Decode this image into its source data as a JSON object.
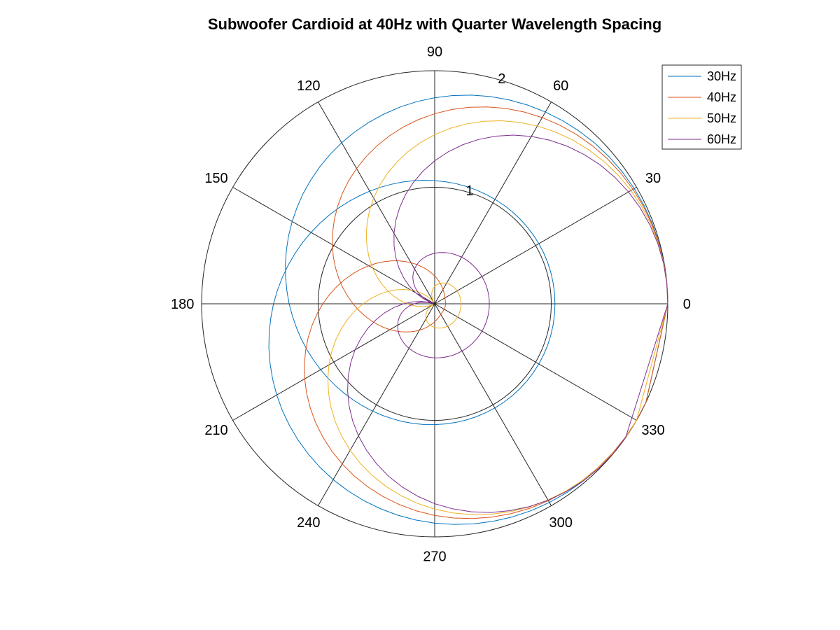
{
  "chart_data": {
    "type": "polar-line",
    "title": "Subwoofer Cardioid at 40Hz with Quarter Wavelength Spacing",
    "theta_unit": "degrees",
    "theta_ticks": [
      "0",
      "30",
      "60",
      "90",
      "120",
      "150",
      "180",
      "210",
      "240",
      "270",
      "300",
      "330"
    ],
    "theta_tick_values": [
      0,
      30,
      60,
      90,
      120,
      150,
      180,
      210,
      240,
      270,
      300,
      330
    ],
    "r_ticks": [
      "1",
      "2"
    ],
    "r_tick_values": [
      1,
      2
    ],
    "rlim": [
      0,
      2
    ],
    "grid": true,
    "legend_position": "top-right",
    "formula": "r = |1 + exp(i*(pi/2)*(f/40)*(1 - cos(theta)))|",
    "theta_step_deg": 5,
    "series": [
      {
        "name": "30Hz",
        "color": "#0072BD",
        "r_values": [
          2.0,
          2.0,
          1.998,
          1.995,
          1.99,
          1.984,
          1.977,
          1.968,
          1.958,
          1.946,
          1.932,
          1.917,
          1.9,
          1.882,
          1.862,
          1.841,
          1.818,
          1.794,
          1.768,
          1.742,
          1.714,
          1.685,
          1.656,
          1.626,
          1.596,
          1.565,
          1.534,
          1.503,
          1.473,
          1.442,
          1.412,
          1.383,
          1.354,
          1.326,
          1.299,
          1.273,
          1.249,
          1.225,
          1.203,
          1.183,
          1.164,
          1.146,
          1.13,
          1.116,
          1.103,
          1.091,
          1.081,
          1.072,
          1.064,
          1.057,
          1.051,
          1.047,
          1.043,
          1.04,
          1.037,
          1.035,
          1.034,
          1.033,
          1.032,
          1.032,
          1.032,
          1.032,
          1.032,
          1.032,
          1.032,
          1.032,
          1.032,
          1.032,
          1.032,
          1.032,
          1.032,
          1.032,
          1.032,
          1.032,
          1.032,
          1.032,
          1.032,
          1.032,
          1.032,
          1.032,
          1.032,
          1.032,
          1.033,
          1.034,
          1.035,
          1.037,
          1.04,
          1.043,
          1.047,
          1.051,
          1.057,
          1.064,
          1.072,
          1.081,
          1.091,
          1.103,
          1.116,
          1.13,
          1.146,
          1.164,
          1.183,
          1.203,
          1.225,
          1.249,
          1.273,
          1.299,
          1.326,
          1.354,
          1.383,
          1.412,
          1.442,
          1.473,
          1.503,
          1.534,
          1.565,
          1.596,
          1.626,
          1.656,
          1.685,
          1.714,
          1.742,
          1.768,
          1.794,
          1.818,
          1.841,
          1.862,
          1.882,
          1.9,
          1.917,
          1.932,
          1.946,
          1.958,
          1.968,
          1.977,
          1.984,
          1.99,
          1.995,
          1.998,
          2.0,
          2.0
        ]
      },
      {
        "name": "40Hz",
        "color": "#D95319",
        "r_values": [
          2.0,
          2.0,
          1.997,
          1.992,
          1.985,
          1.976,
          1.964,
          1.951,
          1.935,
          1.916,
          1.895,
          1.871,
          1.845,
          1.816,
          1.784,
          1.749,
          1.712,
          1.673,
          1.631,
          1.587,
          1.541,
          1.493,
          1.444,
          1.393,
          1.341,
          1.288,
          1.234,
          1.179,
          1.124,
          1.069,
          1.014,
          0.96,
          0.906,
          0.853,
          0.801,
          0.75,
          0.701,
          0.653,
          0.607,
          0.563,
          0.521,
          0.481,
          0.443,
          0.407,
          0.374,
          0.342,
          0.313,
          0.286,
          0.261,
          0.239,
          0.218,
          0.199,
          0.182,
          0.167,
          0.154,
          0.142,
          0.132,
          0.123,
          0.116,
          0.11,
          0.105,
          0.101,
          0.098,
          0.096,
          0.095,
          0.094,
          0.093,
          0.093,
          0.093,
          0.093,
          0.093,
          0.093,
          0.093,
          0.093,
          0.094,
          0.095,
          0.096,
          0.098,
          0.101,
          0.105,
          0.11,
          0.116,
          0.123,
          0.132,
          0.142,
          0.154,
          0.167,
          0.182,
          0.199,
          0.218,
          0.239,
          0.261,
          0.286,
          0.313,
          0.342,
          0.374,
          0.407,
          0.443,
          0.481,
          0.521,
          0.563,
          0.607,
          0.653,
          0.701,
          0.75,
          0.801,
          0.853,
          0.906,
          0.96,
          1.014,
          1.069,
          1.124,
          1.179,
          1.234,
          1.288,
          1.341,
          1.393,
          1.444,
          1.493,
          1.541,
          1.587,
          1.631,
          1.673,
          1.712,
          1.749,
          1.784,
          1.816,
          1.845,
          1.871,
          1.895,
          1.916,
          1.935,
          1.951,
          1.964,
          1.976,
          1.985,
          1.992,
          1.997,
          2.0,
          2.0
        ]
      },
      {
        "name": "50Hz",
        "color": "#EDB120",
        "r_values": [
          2.0,
          2.0,
          1.996,
          1.988,
          1.977,
          1.962,
          1.944,
          1.923,
          1.898,
          1.869,
          1.837,
          1.801,
          1.762,
          1.718,
          1.671,
          1.621,
          1.567,
          1.511,
          1.451,
          1.389,
          1.325,
          1.258,
          1.189,
          1.119,
          1.048,
          0.976,
          0.903,
          0.83,
          0.758,
          0.686,
          0.615,
          0.546,
          0.478,
          0.413,
          0.351,
          0.292,
          0.236,
          0.184,
          0.135,
          0.091,
          0.05,
          0.014,
          0.019,
          0.048,
          0.074,
          0.097,
          0.117,
          0.134,
          0.149,
          0.162,
          0.173,
          0.182,
          0.19,
          0.197,
          0.203,
          0.208,
          0.212,
          0.215,
          0.218,
          0.22,
          0.222,
          0.223,
          0.224,
          0.225,
          0.226,
          0.226,
          0.226,
          0.226,
          0.226,
          0.226,
          0.226,
          0.226,
          0.226,
          0.226,
          0.226,
          0.225,
          0.224,
          0.223,
          0.222,
          0.22,
          0.218,
          0.215,
          0.212,
          0.208,
          0.203,
          0.197,
          0.19,
          0.182,
          0.173,
          0.162,
          0.149,
          0.134,
          0.117,
          0.097,
          0.074,
          0.048,
          0.019,
          0.014,
          0.05,
          0.091,
          0.135,
          0.184,
          0.236,
          0.292,
          0.351,
          0.413,
          0.478,
          0.546,
          0.615,
          0.686,
          0.758,
          0.83,
          0.903,
          0.976,
          1.048,
          1.119,
          1.189,
          1.258,
          1.325,
          1.389,
          1.451,
          1.511,
          1.567,
          1.621,
          1.671,
          1.718,
          1.762,
          1.801,
          1.837,
          1.869,
          1.898,
          1.923,
          1.944,
          1.962,
          1.977,
          1.988,
          1.996,
          2.0,
          2.0
        ]
      },
      {
        "name": "60Hz",
        "color": "#7E2F8E",
        "r_values": [
          2.0,
          1.999,
          1.994,
          1.983,
          1.967,
          1.946,
          1.92,
          1.889,
          1.854,
          1.812,
          1.766,
          1.715,
          1.658,
          1.597,
          1.531,
          1.46,
          1.386,
          1.308,
          1.227,
          1.143,
          1.057,
          0.969,
          0.879,
          0.789,
          0.698,
          0.608,
          0.519,
          0.433,
          0.348,
          0.267,
          0.19,
          0.116,
          0.048,
          0.016,
          0.075,
          0.129,
          0.177,
          0.22,
          0.258,
          0.292,
          0.321,
          0.346,
          0.367,
          0.386,
          0.401,
          0.414,
          0.425,
          0.434,
          0.441,
          0.447,
          0.452,
          0.456,
          0.459,
          0.462,
          0.464,
          0.465,
          0.466,
          0.467,
          0.468,
          0.468,
          0.468,
          0.469,
          0.469,
          0.469,
          0.469,
          0.469,
          0.469,
          0.469,
          0.469,
          0.469,
          0.469,
          0.469,
          0.469,
          0.469,
          0.469,
          0.469,
          0.469,
          0.468,
          0.468,
          0.468,
          0.467,
          0.466,
          0.465,
          0.464,
          0.462,
          0.459,
          0.456,
          0.452,
          0.447,
          0.441,
          0.434,
          0.425,
          0.414,
          0.401,
          0.386,
          0.367,
          0.346,
          0.321,
          0.292,
          0.258,
          0.22,
          0.177,
          0.129,
          0.075,
          0.016,
          0.048,
          0.116,
          0.19,
          0.267,
          0.348,
          0.433,
          0.519,
          0.608,
          0.698,
          0.789,
          0.879,
          0.969,
          1.057,
          1.143,
          1.227,
          1.308,
          1.386,
          1.46,
          1.531,
          1.597,
          1.658,
          1.715,
          1.766,
          1.812,
          1.854,
          1.889,
          1.92,
          1.946,
          1.967,
          1.983,
          1.994,
          1.999,
          2.0
        ]
      }
    ]
  }
}
